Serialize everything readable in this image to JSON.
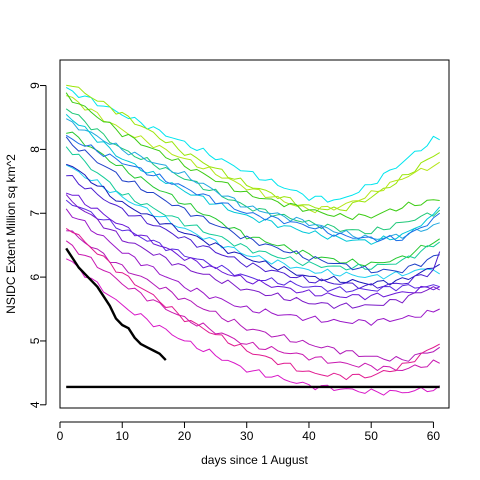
{
  "chart_data": {
    "type": "line",
    "title": "",
    "xlabel": "days since 1 August",
    "ylabel": "NSIDC Extent Million sq km^2",
    "xlim": [
      0,
      62.5
    ],
    "ylim": [
      3.95,
      9.4
    ],
    "x_ticks": [
      "0",
      "10",
      "20",
      "30",
      "40",
      "50",
      "60"
    ],
    "y_ticks": [
      "4",
      "5",
      "6",
      "7",
      "8",
      "9"
    ],
    "grid": false,
    "legend": "none",
    "series": [
      {
        "color": "#00e5ee",
        "x": [
          1,
          10,
          20,
          30,
          40,
          45,
          50,
          55,
          60,
          61
        ],
        "y": [
          8.95,
          8.55,
          8.1,
          7.65,
          7.25,
          7.2,
          7.45,
          7.8,
          8.15,
          8.15
        ]
      },
      {
        "color": "#9be60a",
        "x": [
          1,
          10,
          20,
          30,
          40,
          45,
          50,
          55,
          60,
          61
        ],
        "y": [
          9.05,
          8.55,
          7.95,
          7.45,
          7.1,
          7.05,
          7.25,
          7.55,
          7.9,
          7.95
        ]
      },
      {
        "color": "#b5e61a",
        "x": [
          1,
          10,
          20,
          30,
          40,
          45,
          50,
          55,
          60,
          61
        ],
        "y": [
          8.85,
          8.3,
          7.85,
          7.4,
          7.05,
          7.1,
          7.3,
          7.55,
          7.75,
          7.8
        ]
      },
      {
        "color": "#3ccc14",
        "x": [
          1,
          10,
          20,
          30,
          40,
          45,
          50,
          55,
          60,
          61
        ],
        "y": [
          8.85,
          8.25,
          7.75,
          7.3,
          7.05,
          6.95,
          6.95,
          7.1,
          7.2,
          7.2
        ]
      },
      {
        "color": "#1ec878",
        "x": [
          1,
          10,
          20,
          30,
          40,
          45,
          50,
          55,
          60,
          61
        ],
        "y": [
          8.65,
          8.0,
          7.55,
          7.1,
          6.85,
          6.75,
          6.7,
          6.85,
          7.0,
          7.05
        ]
      },
      {
        "color": "#22a8e0",
        "x": [
          1,
          10,
          20,
          30,
          40,
          45,
          50,
          55,
          60,
          61
        ],
        "y": [
          8.45,
          8.0,
          7.6,
          7.1,
          6.85,
          6.7,
          6.6,
          6.65,
          6.8,
          6.85
        ]
      },
      {
        "color": "#00c8d8",
        "x": [
          1,
          10,
          20,
          30,
          40,
          45,
          50,
          55,
          60,
          61
        ],
        "y": [
          8.55,
          7.85,
          7.35,
          6.95,
          6.7,
          6.6,
          6.55,
          6.65,
          6.95,
          7.1
        ]
      },
      {
        "color": "#24c830",
        "x": [
          1,
          10,
          20,
          30,
          40,
          45,
          50,
          55,
          60,
          61
        ],
        "y": [
          8.3,
          7.7,
          7.15,
          6.65,
          6.35,
          6.25,
          6.2,
          6.3,
          6.55,
          6.6
        ]
      },
      {
        "color": "#1a6ee8",
        "x": [
          1,
          10,
          20,
          30,
          40,
          45,
          50,
          55,
          60,
          61
        ],
        "y": [
          8.2,
          7.8,
          7.4,
          7.0,
          6.8,
          6.65,
          6.6,
          6.6,
          6.9,
          7.0
        ]
      },
      {
        "color": "#14cc98",
        "x": [
          1,
          10,
          20,
          30,
          40,
          45,
          50,
          55,
          60,
          61
        ],
        "y": [
          8.05,
          7.3,
          6.85,
          6.45,
          6.2,
          6.15,
          6.15,
          6.25,
          6.5,
          6.55
        ]
      },
      {
        "color": "#1fd0f0",
        "x": [
          1,
          10,
          20,
          30,
          40,
          45,
          50,
          55,
          60,
          61
        ],
        "y": [
          7.75,
          7.25,
          6.75,
          6.35,
          6.1,
          6.05,
          6.0,
          6.05,
          6.15,
          6.05
        ]
      },
      {
        "color": "#2040c8",
        "x": [
          1,
          10,
          20,
          30,
          40,
          45,
          50,
          55,
          60,
          61
        ],
        "y": [
          8.15,
          7.55,
          7.05,
          6.6,
          6.3,
          6.2,
          6.1,
          6.1,
          6.3,
          6.35
        ]
      },
      {
        "color": "#1818b8",
        "x": [
          1,
          10,
          20,
          30,
          40,
          45,
          50,
          55,
          60,
          61
        ],
        "y": [
          7.8,
          7.15,
          6.7,
          6.3,
          6.0,
          5.95,
          5.9,
          5.95,
          6.15,
          6.2
        ]
      },
      {
        "color": "#4a1cd0",
        "x": [
          1,
          10,
          20,
          30,
          40,
          45,
          50,
          55,
          60,
          61
        ],
        "y": [
          7.6,
          7.05,
          6.6,
          6.2,
          5.95,
          5.9,
          5.85,
          5.9,
          6.1,
          6.4
        ]
      },
      {
        "color": "#5a2ae0",
        "x": [
          1,
          10,
          20,
          30,
          40,
          45,
          50,
          55,
          60,
          61
        ],
        "y": [
          7.2,
          6.75,
          6.35,
          6.0,
          5.85,
          5.8,
          5.8,
          5.85,
          5.85,
          5.85
        ]
      },
      {
        "color": "#6a18d8",
        "x": [
          1,
          10,
          20,
          30,
          40,
          45,
          50,
          55,
          60,
          61
        ],
        "y": [
          7.35,
          6.8,
          6.3,
          5.95,
          5.75,
          5.7,
          5.7,
          5.75,
          5.85,
          5.85
        ]
      },
      {
        "color": "#7a18c8",
        "x": [
          1,
          10,
          20,
          30,
          40,
          45,
          50,
          55,
          60,
          61
        ],
        "y": [
          7.25,
          6.6,
          6.15,
          5.8,
          5.6,
          5.55,
          5.55,
          5.65,
          5.85,
          5.8
        ]
      },
      {
        "color": "#9a18c8",
        "x": [
          1,
          10,
          20,
          30,
          40,
          45,
          50,
          55,
          60,
          61
        ],
        "y": [
          7.05,
          6.4,
          5.85,
          5.5,
          5.35,
          5.3,
          5.3,
          5.35,
          5.45,
          5.5
        ]
      },
      {
        "color": "#b018b8",
        "x": [
          1,
          10,
          20,
          30,
          40,
          45,
          50,
          55,
          60,
          61
        ],
        "y": [
          6.75,
          6.15,
          5.65,
          5.2,
          4.95,
          4.85,
          4.75,
          4.7,
          4.85,
          4.9
        ]
      },
      {
        "color": "#c818b0",
        "x": [
          1,
          10,
          20,
          30,
          40,
          45,
          50,
          55,
          60,
          61
        ],
        "y": [
          6.55,
          5.9,
          5.35,
          4.95,
          4.75,
          4.65,
          4.6,
          4.55,
          4.65,
          4.65
        ]
      },
      {
        "color": "#e01a90",
        "x": [
          1,
          10,
          20,
          30,
          40,
          45,
          50,
          55,
          60,
          61
        ],
        "y": [
          6.8,
          6.05,
          5.35,
          4.85,
          4.5,
          4.45,
          4.45,
          4.6,
          4.9,
          4.95
        ]
      },
      {
        "color": "#d818c8",
        "x": [
          1,
          10,
          20,
          30,
          40,
          45,
          50,
          55,
          60,
          61
        ],
        "y": [
          6.3,
          5.55,
          5.0,
          4.55,
          4.3,
          4.25,
          4.2,
          4.2,
          4.25,
          4.3
        ]
      },
      {
        "color": "#000000",
        "x": [
          1,
          2,
          3,
          4,
          5,
          6,
          7,
          8,
          9,
          10,
          11,
          12,
          13,
          14,
          15,
          16,
          17
        ],
        "y": [
          6.45,
          6.3,
          6.15,
          6.05,
          5.95,
          5.85,
          5.7,
          5.55,
          5.35,
          5.25,
          5.2,
          5.05,
          4.95,
          4.9,
          4.85,
          4.8,
          4.7
        ]
      },
      {
        "color": "#000000",
        "x": [
          1,
          61
        ],
        "y": [
          4.28,
          4.28
        ]
      }
    ]
  }
}
